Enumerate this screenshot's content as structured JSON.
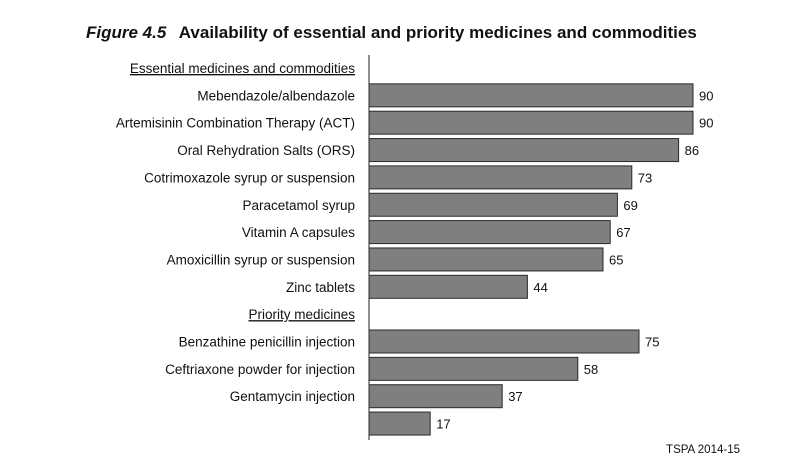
{
  "figure": {
    "title_prefix": "Figure 4.5",
    "title": "Availability of essential and priority medicines and commodities",
    "source": "TSPA 2014-15"
  },
  "chart_data": {
    "type": "bar",
    "orientation": "horizontal",
    "xlim": [
      0,
      100
    ],
    "grid": false,
    "legend": "none",
    "bar_color": "#7f7f7f",
    "rows": [
      {
        "kind": "section",
        "label": "Essential medicines and commodities"
      },
      {
        "kind": "bar",
        "label": "Mebendazole/albendazole",
        "value": 90
      },
      {
        "kind": "bar",
        "label": "Artemisinin Combination Therapy (ACT)",
        "value": 90
      },
      {
        "kind": "bar",
        "label": "Oral Rehydration Salts (ORS)",
        "value": 86
      },
      {
        "kind": "bar",
        "label": "Cotrimoxazole syrup or suspension",
        "value": 73
      },
      {
        "kind": "bar",
        "label": "Paracetamol syrup",
        "value": 69
      },
      {
        "kind": "bar",
        "label": "Vitamin A capsules",
        "value": 67
      },
      {
        "kind": "bar",
        "label": "Amoxicillin syrup or suspension",
        "value": 65
      },
      {
        "kind": "bar",
        "label": "Zinc tablets",
        "value": 44
      },
      {
        "kind": "section",
        "label": "Priority medicines"
      },
      {
        "kind": "bar",
        "label": "Benzathine penicillin injection",
        "value": 75
      },
      {
        "kind": "bar",
        "label": "Ceftriaxone powder for injection",
        "value": 58
      },
      {
        "kind": "bar",
        "label": "Gentamycin injection",
        "value": 37
      },
      {
        "kind": "bar",
        "label": "",
        "value": 17
      }
    ]
  }
}
